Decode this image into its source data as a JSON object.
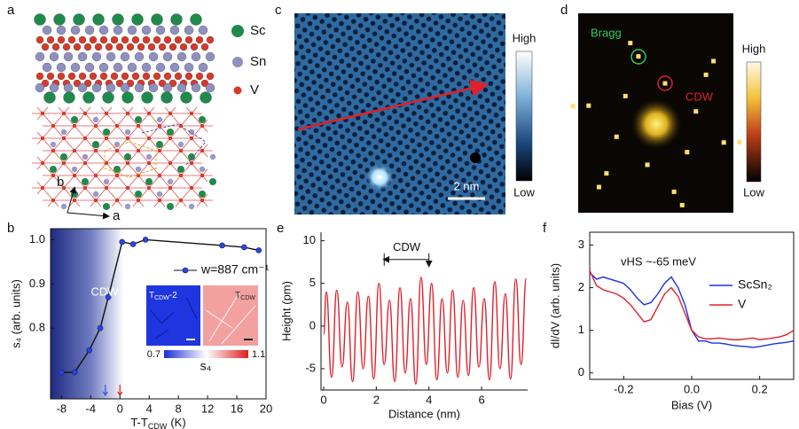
{
  "panel_labels": [
    "a",
    "b",
    "c",
    "d",
    "e",
    "f"
  ],
  "panel_a": {
    "legend": [
      "Sc",
      "Sn",
      "V"
    ],
    "axis_labels": [
      "b",
      "a"
    ]
  },
  "panel_c": {
    "colorbar": [
      "High",
      "Low"
    ],
    "scale_bar": "2 nm"
  },
  "panel_d": {
    "colorbar": [
      "High",
      "Low"
    ],
    "annotations": [
      "Bragg",
      "CDW"
    ]
  },
  "chart_data": [
    {
      "type": "line",
      "xlabel": "T-T",
      "xlabel_sub": "CDW",
      "xlabel_unit": "(K)",
      "ylabel": "s₄ (arb. units)",
      "annotation": "CDW",
      "xlim": [
        -9.5,
        20
      ],
      "xticks": [
        -8,
        -4,
        0,
        4,
        8,
        12,
        16,
        20
      ],
      "ylim": [
        0.64,
        1.025
      ],
      "yticks": [
        0.8,
        0.9,
        {
          "value": 1,
          "label": "1.0"
        }
      ],
      "series": [
        {
          "name": "w=887 cm⁻¹",
          "color": "#2a45e0",
          "x": [
            -8,
            -6.2,
            -4.2,
            -2.7,
            -1.6,
            0.3,
            1.8,
            3.5,
            14,
            17,
            19
          ],
          "values": [
            0.7,
            0.7,
            0.75,
            0.8,
            0.87,
            0.995,
            0.99,
            1.0,
            0.987,
            0.983,
            0.976
          ]
        }
      ],
      "markers": [
        {
          "x": -2,
          "color": "#3a5bd8"
        },
        {
          "x": 0,
          "color": "#e02020"
        }
      ],
      "inset": {
        "labels": [
          {
            "main": "T",
            "sub": "CDW",
            "tail": "-2"
          },
          {
            "main": "T",
            "sub": "CDW"
          }
        ],
        "colorbar_lim": [
          0.7,
          1.1
        ],
        "colorbar_label": "s₄"
      }
    },
    {
      "type": "line",
      "xlabel": "Distance (nm)",
      "ylabel": "Height (pm)",
      "xlim": [
        -0.1,
        7.75
      ],
      "xticks": [
        0,
        2,
        4,
        6
      ],
      "ylim": [
        -7.5,
        11
      ],
      "yticks": [
        -5,
        0,
        5,
        10
      ],
      "annotation": {
        "text": "CDW",
        "x": [
          2.3,
          4.0
        ],
        "y": 7.8
      },
      "series": [
        {
          "name": "Height",
          "color": "#e0202a",
          "x": [
            0,
            0.1,
            0.3,
            0.5,
            0.7,
            0.9,
            1.1,
            1.3,
            1.5,
            1.7,
            1.9,
            2.1,
            2.3,
            2.5,
            2.7,
            2.9,
            3.1,
            3.3,
            3.5,
            3.7,
            3.9,
            4.1,
            4.3,
            4.5,
            4.7,
            4.9,
            5.1,
            5.3,
            5.5,
            5.7,
            5.9,
            6.1,
            6.3,
            6.5,
            6.7,
            6.9,
            7.1,
            7.3,
            7.5,
            7.7
          ],
          "values": [
            -1,
            4.0,
            -6.0,
            4.2,
            -4.8,
            2.8,
            -6.5,
            4.0,
            -5.0,
            3.5,
            -6.2,
            5.0,
            -4.5,
            3.0,
            -6.5,
            4.5,
            -5.5,
            3.2,
            -6.8,
            5.7,
            -4.5,
            5.0,
            -6.3,
            3.2,
            -5.5,
            4.2,
            -6.0,
            3.0,
            -5.8,
            4.5,
            -4.8,
            3.2,
            -6.3,
            5.2,
            -5.0,
            3.8,
            -6.2,
            5.5,
            -4.5,
            5.6
          ]
        }
      ]
    },
    {
      "type": "line",
      "xlabel": "Bias (V)",
      "ylabel": "dI/dV (arb. units)",
      "annotation": "vHS ~-65 meV",
      "xlim": [
        -0.3,
        0.3
      ],
      "xticks": [
        -0.2,
        {
          "value": 0,
          "label": "0.0"
        },
        0.2
      ],
      "ylim": [
        -0.15,
        3.3
      ],
      "yticks": [
        0,
        1,
        2,
        3
      ],
      "series": [
        {
          "name": "ScSn₂",
          "color": "#1a2fe8",
          "x": [
            -0.3,
            -0.28,
            -0.26,
            -0.24,
            -0.22,
            -0.2,
            -0.18,
            -0.16,
            -0.14,
            -0.12,
            -0.1,
            -0.08,
            -0.06,
            -0.04,
            -0.02,
            0,
            0.02,
            0.04,
            0.06,
            0.08,
            0.1,
            0.12,
            0.14,
            0.16,
            0.18,
            0.2,
            0.22,
            0.24,
            0.26,
            0.28,
            0.3
          ],
          "values": [
            2.35,
            2.2,
            2.25,
            2.2,
            2.15,
            2.1,
            1.95,
            1.75,
            1.6,
            1.65,
            1.85,
            2.1,
            2.25,
            2.0,
            1.6,
            1.0,
            0.75,
            0.75,
            0.7,
            0.7,
            0.68,
            0.65,
            0.63,
            0.62,
            0.6,
            0.62,
            0.65,
            0.68,
            0.7,
            0.72,
            0.75
          ]
        },
        {
          "name": "V",
          "color": "#e0202a",
          "x": [
            -0.3,
            -0.28,
            -0.26,
            -0.24,
            -0.22,
            -0.2,
            -0.18,
            -0.16,
            -0.14,
            -0.12,
            -0.1,
            -0.08,
            -0.06,
            -0.04,
            -0.02,
            0,
            0.02,
            0.04,
            0.06,
            0.08,
            0.1,
            0.12,
            0.14,
            0.16,
            0.18,
            0.2,
            0.22,
            0.24,
            0.26,
            0.28,
            0.3
          ],
          "values": [
            2.4,
            2.05,
            1.95,
            1.9,
            1.85,
            1.75,
            1.6,
            1.4,
            1.2,
            1.25,
            1.55,
            1.85,
            2.0,
            1.8,
            1.4,
            1.0,
            0.85,
            0.8,
            0.8,
            0.82,
            0.8,
            0.78,
            0.78,
            0.8,
            0.82,
            0.78,
            0.8,
            0.82,
            0.85,
            0.9,
            1.0
          ]
        }
      ]
    }
  ]
}
